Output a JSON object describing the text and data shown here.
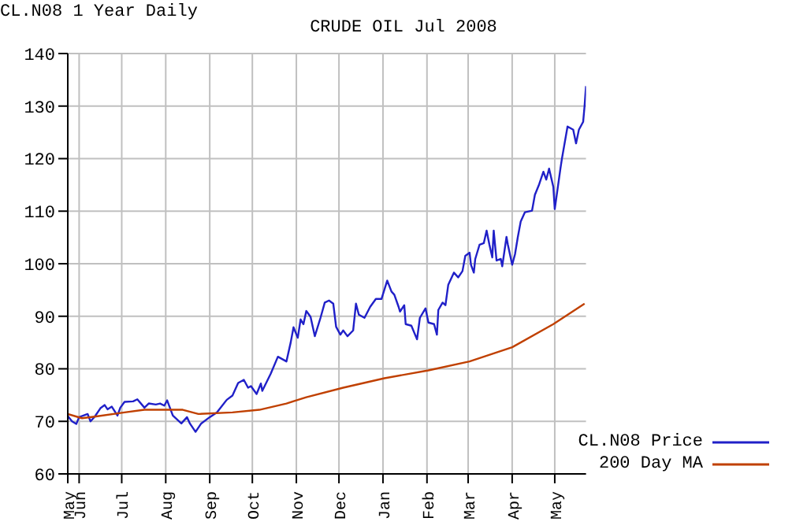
{
  "chart_data": {
    "type": "line",
    "title": "CRUDE OIL Jul 2008",
    "subtitle": "CL.N08 1 Year Daily",
    "xlim": [
      "2007-05-24",
      "2008-05-23"
    ],
    "xticks": [
      {
        "value": "2007-05-24",
        "label": "May"
      },
      {
        "value": "2007-06-01",
        "label": "Jun"
      },
      {
        "value": "2007-07-01",
        "label": "Jul"
      },
      {
        "value": "2007-08-01",
        "label": "Aug"
      },
      {
        "value": "2007-09-01",
        "label": "Sep"
      },
      {
        "value": "2007-10-01",
        "label": "Oct"
      },
      {
        "value": "2007-11-01",
        "label": "Nov"
      },
      {
        "value": "2007-12-01",
        "label": "Dec"
      },
      {
        "value": "2008-01-01",
        "label": "Jan"
      },
      {
        "value": "2008-02-01",
        "label": "Feb"
      },
      {
        "value": "2008-03-01",
        "label": "Mar"
      },
      {
        "value": "2008-04-01",
        "label": "Apr"
      },
      {
        "value": "2008-05-01",
        "label": "May"
      }
    ],
    "ylim": [
      60,
      140
    ],
    "yticks": [
      60,
      70,
      80,
      90,
      100,
      110,
      120,
      130,
      140
    ],
    "grid": true,
    "legend": "bottom right",
    "marker": "none",
    "line_style": "solid",
    "series": [
      {
        "name": "CL.N08 Price",
        "color": "#2020c8",
        "x": [
          "2007-05-24",
          "2007-05-27",
          "2007-05-30",
          "2007-06-01",
          "2007-06-07",
          "2007-06-09",
          "2007-06-12",
          "2007-06-16",
          "2007-06-19",
          "2007-06-21",
          "2007-06-24",
          "2007-06-28",
          "2007-06-30",
          "2007-07-03",
          "2007-07-09",
          "2007-07-12",
          "2007-07-17",
          "2007-07-20",
          "2007-07-25",
          "2007-07-28",
          "2007-07-31",
          "2007-08-02",
          "2007-08-06",
          "2007-08-12",
          "2007-08-16",
          "2007-08-18",
          "2007-08-22",
          "2007-08-26",
          "2007-09-01",
          "2007-09-06",
          "2007-09-13",
          "2007-09-17",
          "2007-09-21",
          "2007-09-25",
          "2007-09-28",
          "2007-09-30",
          "2007-10-04",
          "2007-10-07",
          "2007-10-08",
          "2007-10-14",
          "2007-10-19",
          "2007-10-25",
          "2007-10-28",
          "2007-10-30",
          "2007-11-02",
          "2007-11-04",
          "2007-11-06",
          "2007-11-08",
          "2007-11-11",
          "2007-11-14",
          "2007-11-18",
          "2007-11-21",
          "2007-11-24",
          "2007-11-27",
          "2007-11-29",
          "2007-12-02",
          "2007-12-04",
          "2007-12-07",
          "2007-12-11",
          "2007-12-13",
          "2007-12-15",
          "2007-12-19",
          "2007-12-23",
          "2007-12-27",
          "2007-12-31",
          "2008-01-04",
          "2008-01-07",
          "2008-01-09",
          "2008-01-12",
          "2008-01-13",
          "2008-01-16",
          "2008-01-17",
          "2008-01-21",
          "2008-01-25",
          "2008-01-27",
          "2008-01-31",
          "2008-02-02",
          "2008-02-06",
          "2008-02-08",
          "2008-02-09",
          "2008-02-12",
          "2008-02-14",
          "2008-02-16",
          "2008-02-20",
          "2008-02-23",
          "2008-02-26",
          "2008-02-28",
          "2008-03-02",
          "2008-03-03",
          "2008-03-05",
          "2008-03-06",
          "2008-03-09",
          "2008-03-12",
          "2008-03-14",
          "2008-03-16",
          "2008-03-18",
          "2008-03-19",
          "2008-03-21",
          "2008-03-24",
          "2008-03-25",
          "2008-03-28",
          "2008-03-29",
          "2008-04-01",
          "2008-04-03",
          "2008-04-05",
          "2008-04-07",
          "2008-04-10",
          "2008-04-15",
          "2008-04-17",
          "2008-04-20",
          "2008-04-23",
          "2008-04-25",
          "2008-04-27",
          "2008-04-30",
          "2008-05-01",
          "2008-05-05",
          "2008-05-06",
          "2008-05-10",
          "2008-05-14",
          "2008-05-16",
          "2008-05-18",
          "2008-05-21",
          "2008-05-22",
          "2008-05-23"
        ],
        "values": [
          71.0,
          70.0,
          69.5,
          70.8,
          71.4,
          70.0,
          70.9,
          72.5,
          73.1,
          72.3,
          72.8,
          71.1,
          72.6,
          73.7,
          73.8,
          74.2,
          72.6,
          73.4,
          73.2,
          73.4,
          73.0,
          74.0,
          71.1,
          69.6,
          70.8,
          69.6,
          68.0,
          69.6,
          70.8,
          71.7,
          74.1,
          74.9,
          77.3,
          77.9,
          76.4,
          76.7,
          75.2,
          77.2,
          75.8,
          79.1,
          82.3,
          81.4,
          85.0,
          87.9,
          85.9,
          89.4,
          88.5,
          91.0,
          89.9,
          86.2,
          89.7,
          92.6,
          93.0,
          92.4,
          88.0,
          86.5,
          87.3,
          86.2,
          87.3,
          92.4,
          90.3,
          89.7,
          91.8,
          93.3,
          93.3,
          96.8,
          94.7,
          94.1,
          91.8,
          90.9,
          92.1,
          88.5,
          88.2,
          85.6,
          89.7,
          91.5,
          88.8,
          88.5,
          86.5,
          91.2,
          92.6,
          92.1,
          96.0,
          98.3,
          97.4,
          98.6,
          101.5,
          102.1,
          99.8,
          98.3,
          100.9,
          103.6,
          103.9,
          106.3,
          103.6,
          101.2,
          106.3,
          100.6,
          100.9,
          99.5,
          105.1,
          103.6,
          99.8,
          101.8,
          105.1,
          108.0,
          109.8,
          110.1,
          113.1,
          115.1,
          117.5,
          116.0,
          118.1,
          114.6,
          110.4,
          118.1,
          119.9,
          126.1,
          125.5,
          122.9,
          125.5,
          127.0,
          130.0,
          133.8
        ]
      },
      {
        "name": "200 Day MA",
        "color": "#c04000",
        "x": [
          "2007-05-24",
          "2007-06-03",
          "2007-06-12",
          "2007-07-03",
          "2007-07-17",
          "2007-08-13",
          "2007-08-24",
          "2007-09-17",
          "2007-10-06",
          "2007-10-25",
          "2007-11-08",
          "2007-12-04",
          "2008-01-02",
          "2008-02-02",
          "2008-03-02",
          "2008-04-01",
          "2008-04-30",
          "2008-05-22"
        ],
        "values": [
          71.4,
          70.6,
          70.9,
          71.7,
          72.2,
          72.2,
          71.4,
          71.7,
          72.2,
          73.4,
          74.6,
          76.4,
          78.2,
          79.7,
          81.4,
          84.1,
          88.5,
          92.4
        ]
      }
    ]
  }
}
